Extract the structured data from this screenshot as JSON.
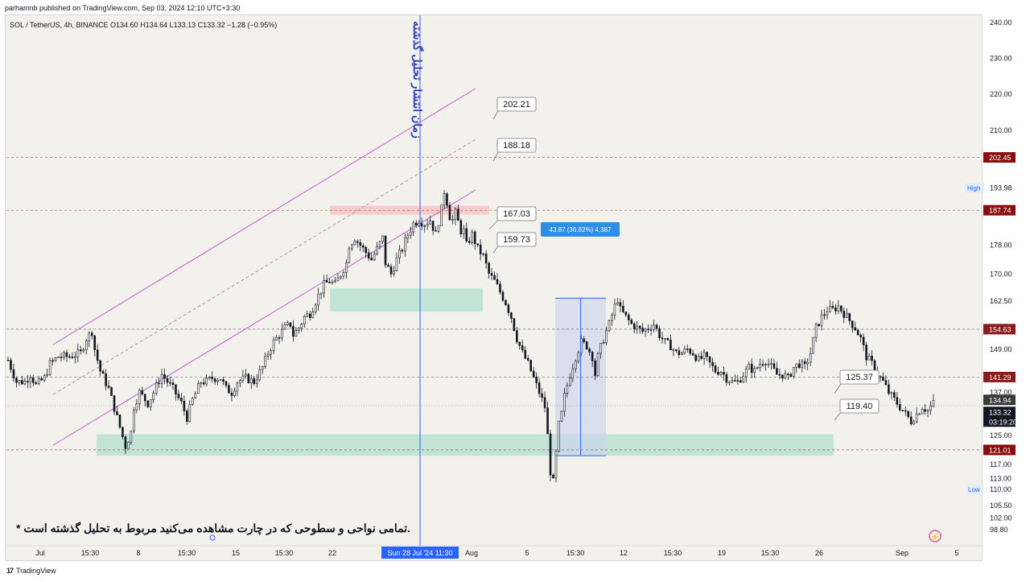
{
  "header": {
    "publish_line": "parhamnb published on TradingView.com, Sep 03, 2024 12:10 UTC+3:30",
    "symbol_line": "SOL / TetherUS, 4h, BINANCE  O134.60  H134.64  L133.13  C133.32  −1.28 (−0.95%)"
  },
  "footer": {
    "brand": "TradingView",
    "logo_glyph": "17"
  },
  "colors": {
    "background": "#f3f1ec",
    "candle": "#131722",
    "channel": "#c25bd6",
    "vline": "#2962ff",
    "red_level": "#880e0e",
    "green_zone": "#b2dfd0",
    "red_zone": "#f7c4c4",
    "measure": "#2962ff"
  },
  "annotations": {
    "vertical_label": "زمان انتشار تحلیل گذشته",
    "note": "* تمامی نواحی و سطوحی که در چارت مشاهده می‌کنید مربوط به تحلیل گذشته است.",
    "measure_label": "43.87 (36.82%) 4,387",
    "callouts": [
      "202.21",
      "188.18",
      "167.03",
      "159.73",
      "125.37",
      "119.40"
    ]
  },
  "chart_data": {
    "type": "candlestick",
    "symbol": "SOL / TetherUS",
    "interval": "4h",
    "exchange": "BINANCE",
    "ylim": [
      96,
      242
    ],
    "y_ticks": [
      "240.00",
      "230.00",
      "220.00",
      "210.00",
      "202.45",
      "193.98",
      "187.74",
      "178.00",
      "170.00",
      "162.50",
      "154.63",
      "149.00",
      "141.29",
      "137.00",
      "134.94",
      "133.32",
      "125.00",
      "121.01",
      "117.00",
      "113.00",
      "110.00",
      "105.50",
      "102.00",
      "98.80"
    ],
    "price_tags": [
      {
        "label": "202.45",
        "kind": "level"
      },
      {
        "label": "187.74",
        "kind": "level"
      },
      {
        "label": "154.63",
        "kind": "level"
      },
      {
        "label": "141.29",
        "kind": "level"
      },
      {
        "label": "121.01",
        "kind": "level"
      },
      {
        "label": "134.94",
        "kind": "prev"
      },
      {
        "label": "133.32",
        "kind": "last"
      },
      {
        "label": "03:19:20",
        "kind": "countdown"
      }
    ],
    "high": {
      "label": "High",
      "value": "193.98"
    },
    "low": {
      "label": "Low",
      "value": "110.00"
    },
    "x_ticks": [
      "Jul",
      "15:30",
      "8",
      "15:30",
      "15",
      "15:30",
      "22",
      "Sun 28 Jul '24   11:30",
      "Aug",
      "5",
      "15:30",
      "12",
      "15:30",
      "19",
      "15:30",
      "26",
      "Sep",
      "5"
    ],
    "dashed_levels": [
      202.45,
      187.74,
      154.63,
      141.29,
      121.01
    ],
    "zones": [
      {
        "kind": "red",
        "top": 189,
        "bottom": 186.5
      },
      {
        "kind": "green",
        "top": 166,
        "bottom": 159.5
      },
      {
        "kind": "green",
        "top": 125.37,
        "bottom": 119.4
      }
    ],
    "measure": {
      "from": 119.4,
      "to": 163.27,
      "change": "43.87 (36.82%) 4,387"
    },
    "path": [
      [
        0,
        146
      ],
      [
        3,
        140
      ],
      [
        6,
        140
      ],
      [
        8,
        142
      ],
      [
        10,
        139
      ],
      [
        13,
        141
      ],
      [
        15,
        145
      ],
      [
        18,
        147
      ],
      [
        22,
        147
      ],
      [
        26,
        148
      ],
      [
        28,
        152
      ],
      [
        30,
        154
      ],
      [
        31,
        149
      ],
      [
        33,
        143
      ],
      [
        36,
        138
      ],
      [
        39,
        130
      ],
      [
        42,
        122
      ],
      [
        44,
        126
      ],
      [
        45,
        133
      ],
      [
        47,
        137
      ],
      [
        50,
        134
      ],
      [
        52,
        137
      ],
      [
        55,
        142
      ],
      [
        57,
        140
      ],
      [
        59,
        138
      ],
      [
        62,
        134
      ],
      [
        64,
        130
      ],
      [
        66,
        135
      ],
      [
        69,
        140
      ],
      [
        71,
        140
      ],
      [
        73,
        141
      ],
      [
        76,
        141
      ],
      [
        78,
        138
      ],
      [
        80,
        137
      ],
      [
        82,
        140
      ],
      [
        85,
        141
      ],
      [
        88,
        140
      ],
      [
        91,
        144
      ],
      [
        93,
        148
      ],
      [
        95,
        151
      ],
      [
        97,
        153
      ],
      [
        99,
        155
      ],
      [
        101,
        156
      ],
      [
        102,
        153
      ],
      [
        104,
        155
      ],
      [
        106,
        158
      ],
      [
        108,
        159
      ],
      [
        111,
        164
      ],
      [
        113,
        167
      ],
      [
        115,
        168
      ],
      [
        117,
        167
      ],
      [
        119,
        170
      ],
      [
        121,
        173
      ],
      [
        122,
        178
      ],
      [
        124,
        180
      ],
      [
        126,
        178
      ],
      [
        128,
        176
      ],
      [
        130,
        174
      ],
      [
        132,
        177
      ],
      [
        134,
        180
      ],
      [
        135,
        173
      ],
      [
        137,
        170
      ],
      [
        139,
        174
      ],
      [
        141,
        177
      ],
      [
        143,
        181
      ],
      [
        145,
        184
      ],
      [
        147,
        185
      ],
      [
        149,
        184
      ],
      [
        151,
        185
      ],
      [
        152,
        183
      ],
      [
        153,
        181
      ],
      [
        155,
        188
      ],
      [
        156,
        193
      ],
      [
        157,
        190
      ],
      [
        158,
        186
      ],
      [
        159,
        185
      ],
      [
        160,
        187
      ],
      [
        162,
        182
      ],
      [
        163,
        182
      ],
      [
        164,
        178
      ],
      [
        166,
        181
      ],
      [
        168,
        177
      ],
      [
        170,
        175
      ],
      [
        172,
        170
      ],
      [
        174,
        168
      ],
      [
        176,
        165
      ],
      [
        178,
        162
      ],
      [
        180,
        158
      ],
      [
        182,
        152
      ],
      [
        184,
        148
      ],
      [
        186,
        145
      ],
      [
        188,
        141
      ],
      [
        190,
        137
      ],
      [
        192,
        133
      ],
      [
        193,
        125
      ],
      [
        194,
        115
      ],
      [
        195,
        112
      ],
      [
        196,
        120
      ],
      [
        197,
        128
      ],
      [
        198,
        131
      ],
      [
        199,
        136
      ],
      [
        201,
        142
      ],
      [
        203,
        147
      ],
      [
        205,
        151
      ],
      [
        207,
        150
      ],
      [
        209,
        147
      ],
      [
        210,
        142
      ],
      [
        211,
        147
      ],
      [
        213,
        152
      ],
      [
        215,
        156
      ],
      [
        217,
        161
      ],
      [
        218,
        163
      ],
      [
        219,
        160
      ],
      [
        221,
        158
      ],
      [
        223,
        156
      ],
      [
        225,
        155
      ],
      [
        227,
        154
      ],
      [
        229,
        155
      ],
      [
        231,
        156
      ],
      [
        233,
        153
      ],
      [
        235,
        151
      ],
      [
        237,
        150
      ],
      [
        239,
        148
      ],
      [
        241,
        148
      ],
      [
        243,
        149
      ],
      [
        245,
        148
      ],
      [
        247,
        146
      ],
      [
        249,
        147
      ],
      [
        251,
        145
      ],
      [
        253,
        143
      ],
      [
        255,
        143
      ],
      [
        257,
        141
      ],
      [
        259,
        140
      ],
      [
        261,
        140
      ],
      [
        263,
        142
      ],
      [
        265,
        144
      ],
      [
        267,
        143
      ],
      [
        269,
        145
      ],
      [
        271,
        146
      ],
      [
        273,
        144
      ],
      [
        275,
        142
      ],
      [
        277,
        142
      ],
      [
        279,
        141
      ],
      [
        281,
        144
      ],
      [
        283,
        145
      ],
      [
        285,
        144
      ],
      [
        287,
        148
      ],
      [
        289,
        155
      ],
      [
        291,
        158
      ],
      [
        293,
        160
      ],
      [
        295,
        160
      ],
      [
        297,
        161
      ],
      [
        299,
        159
      ],
      [
        301,
        157
      ],
      [
        303,
        155
      ],
      [
        305,
        152
      ],
      [
        307,
        147
      ],
      [
        309,
        145
      ],
      [
        311,
        142
      ],
      [
        313,
        140
      ],
      [
        315,
        137
      ],
      [
        317,
        135
      ],
      [
        319,
        133
      ],
      [
        321,
        131
      ],
      [
        323,
        129
      ],
      [
        325,
        131
      ],
      [
        327,
        133
      ],
      [
        329,
        132
      ],
      [
        331,
        134
      ]
    ]
  }
}
